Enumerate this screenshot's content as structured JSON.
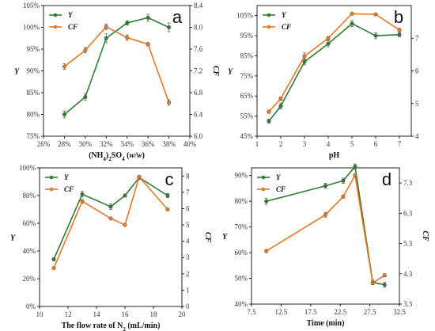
{
  "colors": {
    "Y": "#2e7d32",
    "CF": "#e87722",
    "axis": "#222222",
    "error": "#666666"
  },
  "chart_data": [
    {
      "type": "line",
      "letter": "a",
      "xlabel": "(NH4)2SO4 (w/w)",
      "xlabel_parts": [
        "(NH",
        "4",
        ")",
        "2",
        "SO",
        "4",
        " (",
        "w/w",
        ")"
      ],
      "ylabel": "Y",
      "y2label": "CF",
      "xlim": [
        26,
        40
      ],
      "xticks": [
        26,
        28,
        30,
        32,
        34,
        36,
        38,
        40
      ],
      "xtick_labels": [
        "26%",
        "28%",
        "30%",
        "32%",
        "34%",
        "36%",
        "38%",
        "40%"
      ],
      "ylim": [
        75,
        105
      ],
      "yticks": [
        75,
        80,
        85,
        90,
        95,
        100,
        105
      ],
      "ytick_labels": [
        "75%",
        "80%",
        "85%",
        "90%",
        "95%",
        "100%",
        "105%"
      ],
      "y2lim": [
        6.0,
        8.4
      ],
      "y2ticks": [
        6.0,
        6.4,
        6.8,
        7.2,
        7.6,
        8.0,
        8.4
      ],
      "y2tick_labels": [
        "6.0",
        "6.4",
        "6.8",
        "7.2",
        "7.6",
        "8.0",
        "8.4"
      ],
      "legend": "top-left",
      "series": [
        {
          "name": "Y",
          "axis": "left",
          "x": [
            28,
            30,
            32,
            34,
            36,
            38
          ],
          "values": [
            80.0,
            84.0,
            97.5,
            101.0,
            102.2,
            100.0
          ],
          "err": [
            0.8,
            0.8,
            1.0,
            0.5,
            0.8,
            1.0
          ]
        },
        {
          "name": "CF",
          "axis": "right",
          "x": [
            28,
            30,
            32,
            34,
            36,
            38
          ],
          "values": [
            7.28,
            7.58,
            8.01,
            7.81,
            7.69,
            6.62
          ],
          "err": [
            0.05,
            0.05,
            0.05,
            0.05,
            0.03,
            0.05
          ]
        }
      ]
    },
    {
      "type": "line",
      "letter": "b",
      "xlabel": "pH",
      "xlabel_parts": [
        "pH"
      ],
      "ylabel": "Y",
      "y2label": "CF",
      "xlim": [
        1,
        7.5
      ],
      "xticks": [
        1,
        2,
        3,
        4,
        5,
        6,
        7
      ],
      "xtick_labels": [
        "1",
        "2",
        "3",
        "4",
        "5",
        "6",
        "7"
      ],
      "ylim": [
        45,
        110
      ],
      "yticks": [
        45,
        55,
        65,
        75,
        85,
        95,
        105
      ],
      "ytick_labels": [
        "45%",
        "55%",
        "65%",
        "75%",
        "85%",
        "95%",
        "105%"
      ],
      "y2lim": [
        4,
        8
      ],
      "y2ticks": [
        4,
        5,
        6,
        7
      ],
      "y2tick_labels": [
        "4",
        "5",
        "6",
        "7"
      ],
      "legend": "top-left",
      "series": [
        {
          "name": "Y",
          "axis": "left",
          "x": [
            1.5,
            2,
            3,
            4,
            5,
            6,
            7
          ],
          "values": [
            52.5,
            60.0,
            82.0,
            91.0,
            101.0,
            95.0,
            95.5
          ],
          "err": [
            1.0,
            1.5,
            1.5,
            1.5,
            1.5,
            1.5,
            1.0
          ]
        },
        {
          "name": "CF",
          "axis": "right",
          "x": [
            1.5,
            2,
            3,
            4,
            5,
            6,
            7
          ],
          "values": [
            4.75,
            5.15,
            6.45,
            7.0,
            7.75,
            7.73,
            7.25
          ],
          "err": [
            0.05,
            0.05,
            0.1,
            0.05,
            0.0,
            0.0,
            0.05
          ]
        }
      ]
    },
    {
      "type": "line",
      "letter": "c",
      "xlabel": "The flow rate of N2 (mL/min)",
      "xlabel_parts": [
        "The flow rate of N",
        "2",
        " (mL/min)"
      ],
      "ylabel": "Y",
      "y2label": "CF",
      "xlim": [
        10,
        20
      ],
      "xticks": [
        10,
        12,
        14,
        16,
        18,
        20
      ],
      "xtick_labels": [
        "10",
        "12",
        "14",
        "16",
        "18",
        "20"
      ],
      "ylim": [
        0,
        100
      ],
      "yticks": [
        0,
        20,
        40,
        60,
        80,
        100
      ],
      "ytick_labels": [
        "0%",
        "20%",
        "40%",
        "60%",
        "80%",
        "100%"
      ],
      "y2lim": [
        0,
        8.5
      ],
      "y2ticks": [
        0,
        1,
        2,
        3,
        4,
        5,
        6,
        7,
        8
      ],
      "y2tick_labels": [
        "0",
        "1",
        "2",
        "3",
        "4",
        "5",
        "6",
        "7",
        "8"
      ],
      "legend": "top-left",
      "series": [
        {
          "name": "Y",
          "axis": "left",
          "x": [
            11,
            13,
            15,
            16,
            17,
            19
          ],
          "values": [
            34.0,
            81.0,
            72.0,
            80.0,
            93.0,
            80.0
          ],
          "err": [
            1.0,
            2.0,
            2.0,
            1.0,
            1.5,
            1.5
          ]
        },
        {
          "name": "CF",
          "axis": "right",
          "x": [
            11,
            13,
            15,
            16,
            17,
            19
          ],
          "values": [
            2.35,
            6.45,
            5.4,
            5.0,
            7.95,
            5.95
          ],
          "err": [
            0.05,
            0.1,
            0.05,
            0.05,
            0.05,
            0.05
          ]
        }
      ]
    },
    {
      "type": "line",
      "letter": "d",
      "xlabel": "Time (min)",
      "xlabel_parts": [
        "Time (min)"
      ],
      "ylabel": "Y",
      "y2label": "CF",
      "xlim": [
        7.5,
        32.5
      ],
      "xticks": [
        7.5,
        12.5,
        17.5,
        22.5,
        27.5,
        32.5
      ],
      "xtick_labels": [
        "7.5",
        "12.5",
        "17.5",
        "22.5",
        "27.5",
        "32.5"
      ],
      "ylim": [
        40,
        93
      ],
      "yticks": [
        40,
        50,
        60,
        70,
        80,
        90
      ],
      "ytick_labels": [
        "40%",
        "50%",
        "60%",
        "70%",
        "80%",
        "90%"
      ],
      "y2lim": [
        3.3,
        7.8
      ],
      "y2ticks": [
        3.3,
        4.3,
        5.3,
        6.3,
        7.3
      ],
      "y2tick_labels": [
        "3.3",
        "4.3",
        "5.3",
        "6.3",
        "7.3"
      ],
      "legend": "top-left",
      "series": [
        {
          "name": "Y",
          "axis": "left",
          "x": [
            10,
            20,
            23,
            25,
            28,
            30
          ],
          "values": [
            80.0,
            86.0,
            88.0,
            93.5,
            48.5,
            47.5
          ],
          "err": [
            1.2,
            1.0,
            1.0,
            1.0,
            1.0,
            1.0
          ]
        },
        {
          "name": "CF",
          "axis": "right",
          "x": [
            10,
            20,
            23,
            25,
            28,
            30
          ],
          "values": [
            5.05,
            6.25,
            6.85,
            7.55,
            4.0,
            4.25
          ],
          "err": [
            0.05,
            0.08,
            0.05,
            0.05,
            0.05,
            0.05
          ]
        }
      ]
    }
  ]
}
